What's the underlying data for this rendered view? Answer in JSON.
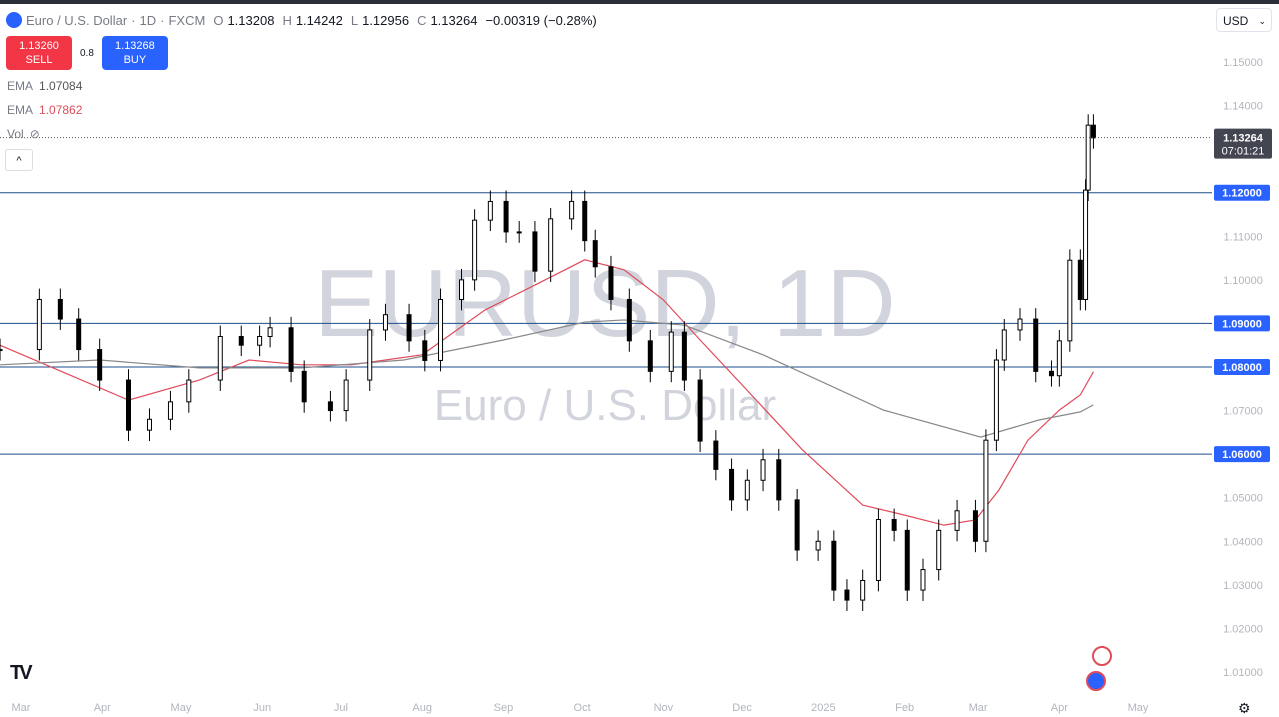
{
  "header": {
    "symbol_title": "Euro / U.S. Dollar",
    "interval": "1D",
    "exchange": "FXCM",
    "open_label": "O",
    "open": "1.13208",
    "high_label": "H",
    "high": "1.14242",
    "low_label": "L",
    "low": "1.12956",
    "close_label": "C",
    "close": "1.13264",
    "change": "−0.00319 (−0.28%)"
  },
  "trade": {
    "sell_price": "1.13260",
    "sell_label": "SELL",
    "spread": "0.8",
    "buy_price": "1.13268",
    "buy_label": "BUY"
  },
  "indicators": [
    {
      "name": "EMA",
      "value": "1.07084",
      "color": "#787b86"
    },
    {
      "name": "EMA",
      "value": "1.07862",
      "color": "#e04b5a"
    },
    {
      "name": "Vol",
      "value": ""
    }
  ],
  "currency_select": "USD",
  "price_tag": {
    "price": "1.13264",
    "countdown": "07:01:21"
  },
  "chart_data": {
    "type": "candlestick",
    "title": "EURUSD, 1D",
    "subtitle": "Euro / U.S. Dollar",
    "ylim": [
      1.005,
      1.155
    ],
    "y_ticks": [
      "1.15000",
      "1.14000",
      "1.13000",
      "1.12000",
      "1.11000",
      "1.10000",
      "1.09000",
      "1.08000",
      "1.07000",
      "1.06000",
      "1.05000",
      "1.04000",
      "1.03000",
      "1.02000",
      "1.01000"
    ],
    "x_ticks": [
      {
        "date": "2024-03-01",
        "label": "Mar"
      },
      {
        "date": "2024-04-01",
        "label": "Apr"
      },
      {
        "date": "2024-05-01",
        "label": "May"
      },
      {
        "date": "2024-06-01",
        "label": "Jun"
      },
      {
        "date": "2024-07-01",
        "label": "Jul"
      },
      {
        "date": "2024-08-01",
        "label": "Aug"
      },
      {
        "date": "2024-09-01",
        "label": "Sep"
      },
      {
        "date": "2024-10-01",
        "label": "Oct"
      },
      {
        "date": "2024-11-01",
        "label": "Nov"
      },
      {
        "date": "2024-12-01",
        "label": "Dec"
      },
      {
        "date": "2025-01-01",
        "label": "2025"
      },
      {
        "date": "2025-02-01",
        "label": "Feb"
      },
      {
        "date": "2025-03-01",
        "label": "Mar"
      },
      {
        "date": "2025-04-01",
        "label": "Apr"
      },
      {
        "date": "2025-05-01",
        "label": "May"
      }
    ],
    "horizontal_lines": [
      {
        "price": 1.12,
        "label": "1.12000"
      },
      {
        "price": 1.09,
        "label": "1.09000"
      },
      {
        "price": 1.08,
        "label": "1.08000"
      },
      {
        "price": 1.06,
        "label": "1.06000"
      }
    ],
    "line_color": "#1e4e8c",
    "closes": [
      [
        "2024-02-22",
        1.084
      ],
      [
        "2024-03-08",
        1.0955
      ],
      [
        "2024-03-16",
        1.091
      ],
      [
        "2024-03-23",
        1.084
      ],
      [
        "2024-03-31",
        1.077
      ],
      [
        "2024-04-11",
        1.0655
      ],
      [
        "2024-04-19",
        1.068
      ],
      [
        "2024-04-27",
        1.072
      ],
      [
        "2024-05-04",
        1.077
      ],
      [
        "2024-05-16",
        1.087
      ],
      [
        "2024-05-24",
        1.085
      ],
      [
        "2024-05-31",
        1.087
      ],
      [
        "2024-06-04",
        1.089
      ],
      [
        "2024-06-12",
        1.079
      ],
      [
        "2024-06-17",
        1.072
      ],
      [
        "2024-06-27",
        1.07
      ],
      [
        "2024-07-03",
        1.077
      ],
      [
        "2024-07-12",
        1.0885
      ],
      [
        "2024-07-18",
        1.092
      ],
      [
        "2024-07-27",
        1.086
      ],
      [
        "2024-08-02",
        1.0815
      ],
      [
        "2024-08-08",
        1.0955
      ],
      [
        "2024-08-16",
        1.1
      ],
      [
        "2024-08-21",
        1.1137
      ],
      [
        "2024-08-27",
        1.118
      ],
      [
        "2024-09-02",
        1.111
      ],
      [
        "2024-09-07",
        1.111
      ],
      [
        "2024-09-13",
        1.102
      ],
      [
        "2024-09-19",
        1.114
      ],
      [
        "2024-09-27",
        1.118
      ],
      [
        "2024-10-02",
        1.109
      ],
      [
        "2024-10-06",
        1.103
      ],
      [
        "2024-10-12",
        1.0955
      ],
      [
        "2024-10-19",
        1.086
      ],
      [
        "2024-10-27",
        1.079
      ],
      [
        "2024-11-04",
        1.088
      ],
      [
        "2024-11-09",
        1.077
      ],
      [
        "2024-11-15",
        1.063
      ],
      [
        "2024-11-21",
        1.0565
      ],
      [
        "2024-11-27",
        1.0495
      ],
      [
        "2024-12-03",
        1.054
      ],
      [
        "2024-12-09",
        1.0587
      ],
      [
        "2024-12-15",
        1.0495
      ],
      [
        "2024-12-22",
        1.038
      ],
      [
        "2024-12-30",
        1.04
      ],
      [
        "2025-01-05",
        1.0288
      ],
      [
        "2025-01-10",
        1.0265
      ],
      [
        "2025-01-16",
        1.031
      ],
      [
        "2025-01-22",
        1.045
      ],
      [
        "2025-01-28",
        1.0425
      ],
      [
        "2025-02-02",
        1.0288
      ],
      [
        "2025-02-08",
        1.0335
      ],
      [
        "2025-02-14",
        1.0425
      ],
      [
        "2025-02-21",
        1.047
      ],
      [
        "2025-02-28",
        1.04
      ],
      [
        "2025-03-04",
        1.0632
      ],
      [
        "2025-03-08",
        1.0816
      ],
      [
        "2025-03-11",
        1.0885
      ],
      [
        "2025-03-17",
        1.091
      ],
      [
        "2025-03-23",
        1.079
      ],
      [
        "2025-03-29",
        1.078
      ],
      [
        "2025-04-01",
        1.086
      ],
      [
        "2025-04-05",
        1.1045
      ],
      [
        "2025-04-09",
        1.0955
      ],
      [
        "2025-04-11",
        1.1206
      ],
      [
        "2025-04-12",
        1.1355
      ],
      [
        "2025-04-14",
        1.1326
      ]
    ],
    "series": [
      {
        "color": "#e04b5a",
        "values": [
          [
            "2024-02-22",
            1.085
          ],
          [
            "2024-04-11",
            1.0724
          ],
          [
            "2024-05-08",
            1.077
          ],
          [
            "2024-05-27",
            1.0816
          ],
          [
            "2024-06-16",
            1.0805
          ],
          [
            "2024-07-05",
            1.0805
          ],
          [
            "2024-08-01",
            1.0828
          ],
          [
            "2024-08-25",
            1.0931
          ],
          [
            "2024-09-13",
            1.0988
          ],
          [
            "2024-10-02",
            1.1046
          ],
          [
            "2024-10-17",
            1.1023
          ],
          [
            "2024-11-01",
            1.0954
          ],
          [
            "2024-11-15",
            1.0862
          ],
          [
            "2024-12-01",
            1.0759
          ],
          [
            "2024-12-24",
            1.061
          ],
          [
            "2025-01-16",
            1.0483
          ],
          [
            "2025-02-01",
            1.046
          ],
          [
            "2025-02-16",
            1.0437
          ],
          [
            "2025-02-28",
            1.0449
          ],
          [
            "2025-03-09",
            1.0518
          ],
          [
            "2025-03-20",
            1.0632
          ],
          [
            "2025-04-01",
            1.0701
          ],
          [
            "2025-04-09",
            1.0736
          ],
          [
            "2025-04-14",
            1.0789
          ]
        ]
      },
      {
        "color": "#888888",
        "values": [
          [
            "2024-02-22",
            1.0805
          ],
          [
            "2024-03-31",
            1.0816
          ],
          [
            "2024-05-08",
            1.0798
          ],
          [
            "2024-06-16",
            1.0798
          ],
          [
            "2024-07-25",
            1.0816
          ],
          [
            "2024-09-01",
            1.0862
          ],
          [
            "2024-10-02",
            1.0903
          ],
          [
            "2024-10-17",
            1.0908
          ],
          [
            "2024-11-09",
            1.0896
          ],
          [
            "2024-12-09",
            1.0828
          ],
          [
            "2025-01-24",
            1.0701
          ],
          [
            "2025-03-02",
            1.0639
          ],
          [
            "2025-03-24",
            1.0678
          ],
          [
            "2025-04-09",
            1.0697
          ],
          [
            "2025-04-14",
            1.0713
          ]
        ]
      }
    ]
  }
}
